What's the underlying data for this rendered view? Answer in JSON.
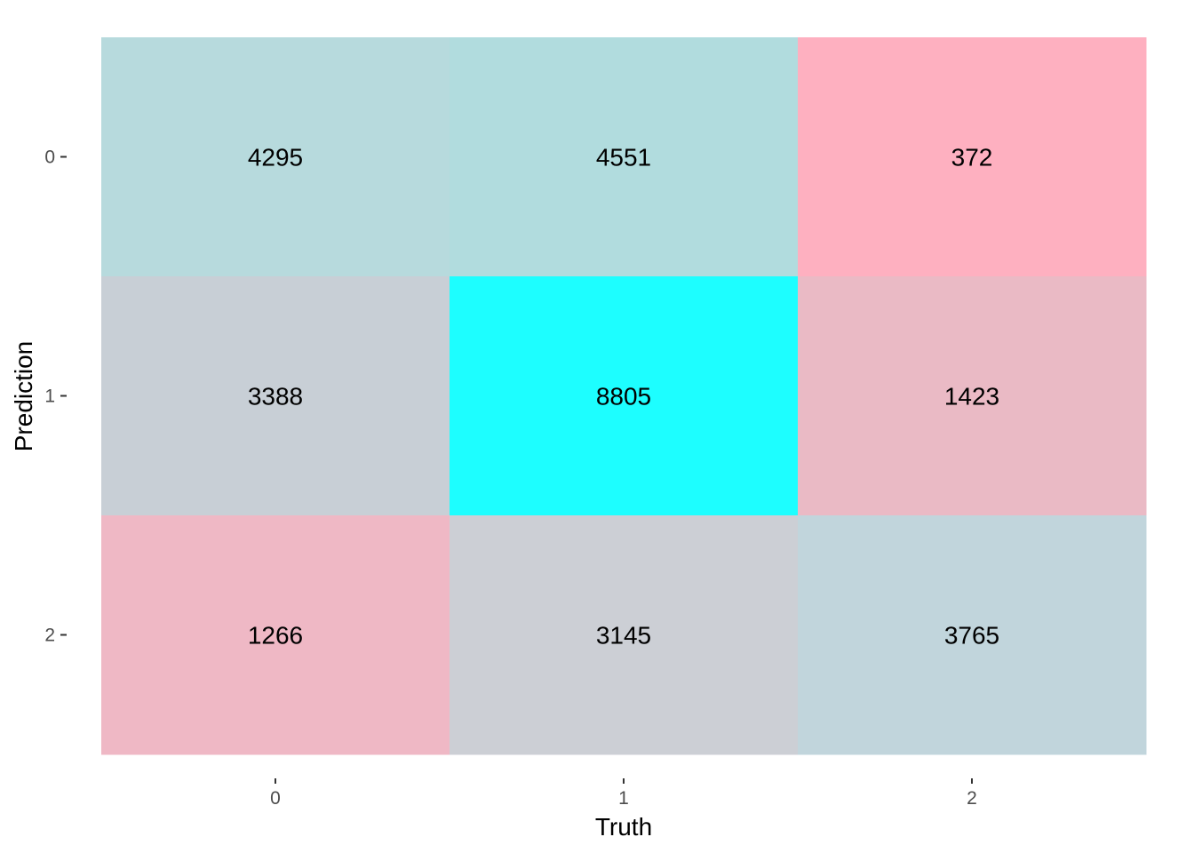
{
  "chart_data": {
    "type": "heatmap",
    "title": "",
    "xlabel": "Truth",
    "ylabel": "Prediction",
    "x_categories": [
      "0",
      "1",
      "2"
    ],
    "y_categories": [
      "0",
      "1",
      "2"
    ],
    "values": [
      [
        4295,
        4551,
        372
      ],
      [
        3388,
        8805,
        1423
      ],
      [
        1266,
        3145,
        3765
      ]
    ],
    "cell_colors": [
      [
        "#b7dadd",
        "#b1dcde",
        "#feb0c0"
      ],
      [
        "#c8cfd6",
        "#1dfeff",
        "#eabac5"
      ],
      [
        "#efb8c5",
        "#cccfd5",
        "#c1d5dc"
      ]
    ],
    "grid": false,
    "legend": "none"
  }
}
